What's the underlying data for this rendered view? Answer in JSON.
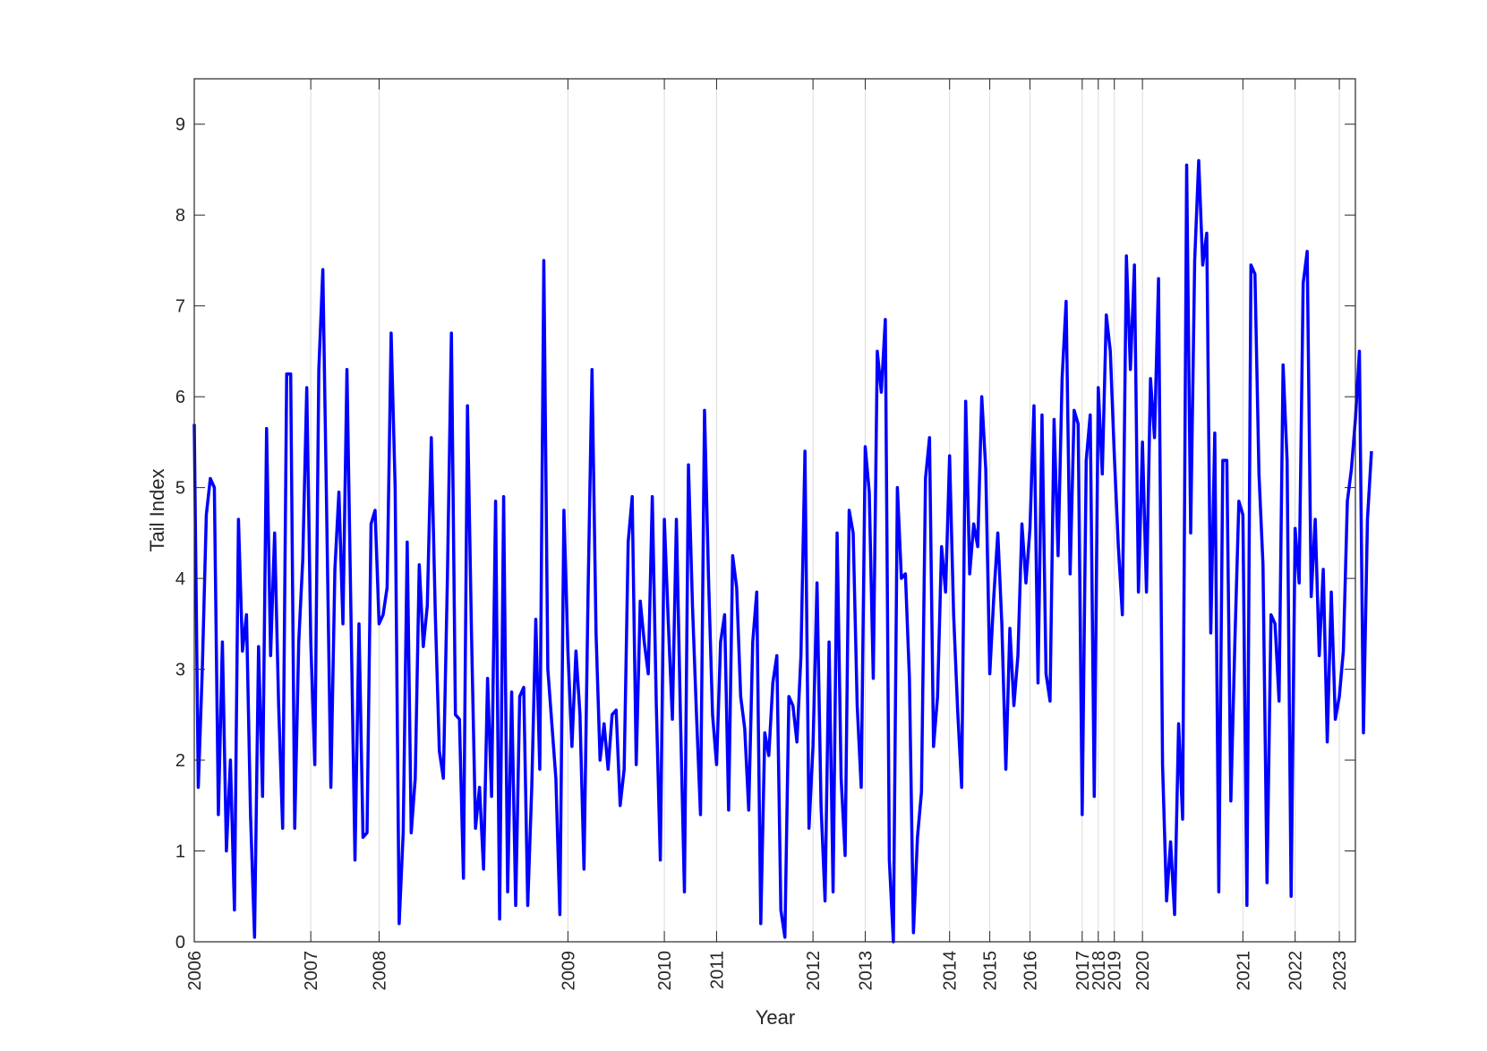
{
  "chart_data": {
    "type": "line",
    "xlabel": "Year",
    "ylabel": "Tail Index",
    "ylim": [
      0,
      9.5
    ],
    "yticks": [
      "0",
      "1",
      "2",
      "3",
      "4",
      "5",
      "6",
      "7",
      "8",
      "9"
    ],
    "xlim_index": [
      0,
      289
    ],
    "x_gridlines": true,
    "y_gridlines": false,
    "x_tick_labels": [
      "2006",
      "2007",
      "2008",
      "2009",
      "2010",
      "2011",
      "2012",
      "2013",
      "2014",
      "2015",
      "2016",
      "2017",
      "2018",
      "2019",
      "2020",
      "2021",
      "2022",
      "2023"
    ],
    "x_tick_positions": [
      0,
      29,
      46,
      93,
      117,
      130,
      154,
      167,
      188,
      198,
      208,
      221,
      225,
      229,
      236,
      261,
      274,
      285
    ],
    "series": [
      {
        "color": "#0000ff",
        "values": [
          5.7,
          1.7,
          3.0,
          4.7,
          5.1,
          5.0,
          1.4,
          3.3,
          1.0,
          2.0,
          0.35,
          4.65,
          3.2,
          3.6,
          1.4,
          0.05,
          3.25,
          1.6,
          5.65,
          3.15,
          4.5,
          2.6,
          1.25,
          6.25,
          6.25,
          1.25,
          3.3,
          4.2,
          6.1,
          3.3,
          1.95,
          6.3,
          7.4,
          4.6,
          1.7,
          4.1,
          4.95,
          3.5,
          6.3,
          3.6,
          0.9,
          3.5,
          1.15,
          1.2,
          4.6,
          4.75,
          3.5,
          3.6,
          3.9,
          6.7,
          5.0,
          0.2,
          1.2,
          4.4,
          1.2,
          1.8,
          4.15,
          3.25,
          3.7,
          5.55,
          3.6,
          2.1,
          1.8,
          4.0,
          6.7,
          2.5,
          2.45,
          0.7,
          5.9,
          3.4,
          1.25,
          1.7,
          0.8,
          2.9,
          1.6,
          4.85,
          0.25,
          4.9,
          0.55,
          2.75,
          0.4,
          2.7,
          2.8,
          0.4,
          1.7,
          3.55,
          1.9,
          7.5,
          3.0,
          2.4,
          1.8,
          0.3,
          4.75,
          3.2,
          2.15,
          3.2,
          2.5,
          0.8,
          3.8,
          6.3,
          3.4,
          2.0,
          2.4,
          1.9,
          2.5,
          2.55,
          1.5,
          1.9,
          4.4,
          4.9,
          1.95,
          3.75,
          3.3,
          2.95,
          4.9,
          2.6,
          0.9,
          4.65,
          3.5,
          2.45,
          4.65,
          2.5,
          0.55,
          5.25,
          3.7,
          2.5,
          1.4,
          5.85,
          4.0,
          2.5,
          1.95,
          3.3,
          3.6,
          1.45,
          4.25,
          3.9,
          2.7,
          2.35,
          1.45,
          3.3,
          3.85,
          0.2,
          2.3,
          2.05,
          2.85,
          3.15,
          0.35,
          0.05,
          2.7,
          2.6,
          2.2,
          3.15,
          5.4,
          1.25,
          2.15,
          3.95,
          1.5,
          0.45,
          3.3,
          0.55,
          4.5,
          1.8,
          0.95,
          4.75,
          4.5,
          2.6,
          1.7,
          5.45,
          4.95,
          2.9,
          6.5,
          6.05,
          6.85,
          0.9,
          0.0,
          5.0,
          4.0,
          4.05,
          2.9,
          0.1,
          1.15,
          1.65,
          5.1,
          5.55,
          2.15,
          2.7,
          4.35,
          3.85,
          5.35,
          3.6,
          2.55,
          1.7,
          5.95,
          4.05,
          4.6,
          4.35,
          6.0,
          5.2,
          2.95,
          3.8,
          4.5,
          3.5,
          1.9,
          3.45,
          2.6,
          3.15,
          4.6,
          3.95,
          4.55,
          5.9,
          2.85,
          5.8,
          2.95,
          2.65,
          5.75,
          4.25,
          6.2,
          7.05,
          4.05,
          5.85,
          5.7,
          1.4,
          5.3,
          5.8,
          1.6,
          6.1,
          5.15,
          6.9,
          6.5,
          5.35,
          4.35,
          3.6,
          7.55,
          6.3,
          7.45,
          3.85,
          5.5,
          3.85,
          6.2,
          5.55,
          7.3,
          1.95,
          0.45,
          1.1,
          0.3,
          2.4,
          1.35,
          8.55,
          4.5,
          7.5,
          8.6,
          7.45,
          7.8,
          3.4,
          5.6,
          0.55,
          5.3,
          5.3,
          1.55,
          3.3,
          4.85,
          4.7,
          0.4,
          7.45,
          7.35,
          5.15,
          4.15,
          0.65,
          3.6,
          3.5,
          2.65,
          6.35,
          5.3,
          0.5,
          4.55,
          3.95,
          7.25,
          7.6,
          3.8,
          4.65,
          3.15,
          4.1,
          2.2,
          3.85,
          2.45,
          2.7,
          3.2,
          4.85,
          5.2,
          5.75,
          6.5,
          2.3,
          4.65,
          5.4
        ]
      }
    ]
  }
}
